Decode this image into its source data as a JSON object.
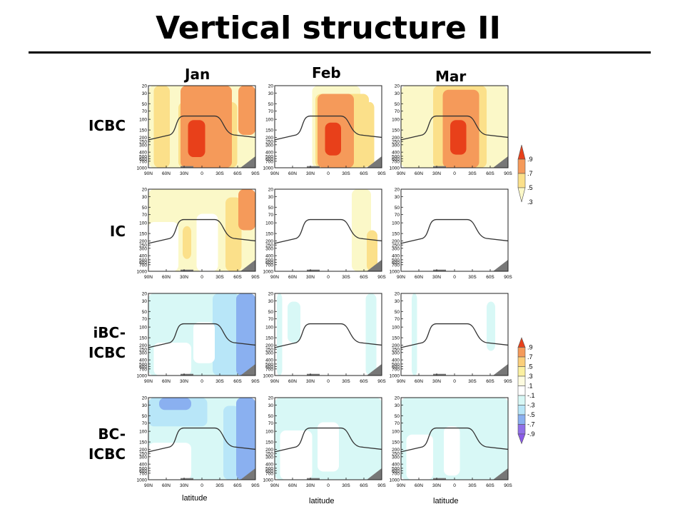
{
  "title": "Vertical structure II",
  "columns": [
    "Jan",
    "Feb",
    "Mar"
  ],
  "rows": [
    "ICBC",
    "IC",
    "iBC-\nICBC",
    "BC-\nICBC"
  ],
  "x_tick_labels": [
    "90N",
    "60N",
    "30N",
    "0",
    "30S",
    "60S",
    "90S"
  ],
  "y_tick_labels": [
    "20",
    "30",
    "50",
    "70",
    "100",
    "150",
    "200",
    "250",
    "300",
    "400",
    "500",
    "600",
    "700",
    "1000"
  ],
  "x_axis_label": "latitude",
  "colorbar_top": {
    "labels": [
      ".9",
      ".7",
      ".5",
      ".3"
    ],
    "colors": [
      "#e8401a",
      "#f59a5a",
      "#fbe08a",
      "#fbf8c8"
    ]
  },
  "colorbar_bottom": {
    "labels": [
      ".9",
      ".7",
      ".5",
      ".3",
      ".1",
      "-.1",
      "-.3",
      "-.5",
      "-.7",
      "-.9"
    ],
    "colors": [
      "#e8401a",
      "#f59a5a",
      "#fbcf7a",
      "#fbf0a0",
      "#fdfbe0",
      "#ffffff",
      "#d8f8f6",
      "#b8e6f8",
      "#8ab0f0",
      "#9070e8",
      "#8a5ae8"
    ]
  }
}
